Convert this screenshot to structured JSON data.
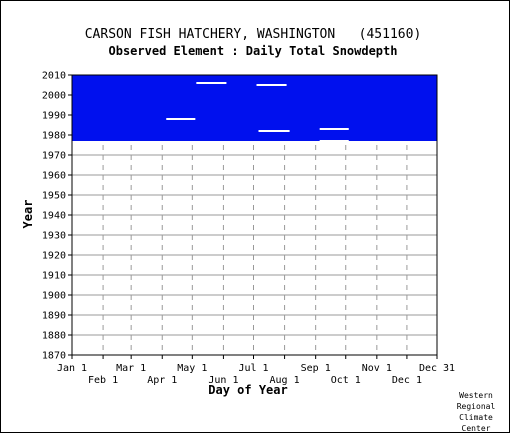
{
  "chart_data": {
    "type": "heatmap",
    "title": "CARSON FISH HATCHERY, WASHINGTON   (451160)",
    "subtitle": "Observed Element : Daily Total Snowdepth",
    "xlabel": "Day of Year",
    "ylabel": "Year",
    "ylim": [
      1870,
      2010
    ],
    "yticks": [
      1870,
      1880,
      1890,
      1900,
      1910,
      1920,
      1930,
      1940,
      1950,
      1960,
      1970,
      1980,
      1990,
      2000,
      2010
    ],
    "xticks_upper": [
      {
        "label": "Jan 1",
        "day": 1
      },
      {
        "label": "Mar 1",
        "day": 60
      },
      {
        "label": "May 1",
        "day": 121
      },
      {
        "label": "Jul 1",
        "day": 182
      },
      {
        "label": "Sep 1",
        "day": 244
      },
      {
        "label": "Nov 1",
        "day": 305
      },
      {
        "label": "Dec 31",
        "day": 365
      }
    ],
    "xticks_lower": [
      {
        "label": "Feb 1",
        "day": 32
      },
      {
        "label": "Apr 1",
        "day": 91
      },
      {
        "label": "Jun 1",
        "day": 152
      },
      {
        "label": "Aug 1",
        "day": 213
      },
      {
        "label": "Oct 1",
        "day": 274
      },
      {
        "label": "Dec 1",
        "day": 335
      }
    ],
    "observed_color": "#0010ee",
    "observed_block": {
      "year_start": 1977,
      "year_end": 2010,
      "day_start": 1,
      "day_end": 365
    },
    "missing_segments": [
      {
        "year": 2006,
        "day_start": 125,
        "day_end": 155
      },
      {
        "year": 2005,
        "day_start": 185,
        "day_end": 215
      },
      {
        "year": 1988,
        "day_start": 95,
        "day_end": 124
      },
      {
        "year": 1982,
        "day_start": 187,
        "day_end": 218
      },
      {
        "year": 1983,
        "day_start": 248,
        "day_end": 277
      },
      {
        "year": 1977,
        "day_start": 248,
        "day_end": 277
      }
    ],
    "grid": true
  },
  "credit": [
    "Western",
    "Regional",
    "Climate",
    "Center"
  ]
}
